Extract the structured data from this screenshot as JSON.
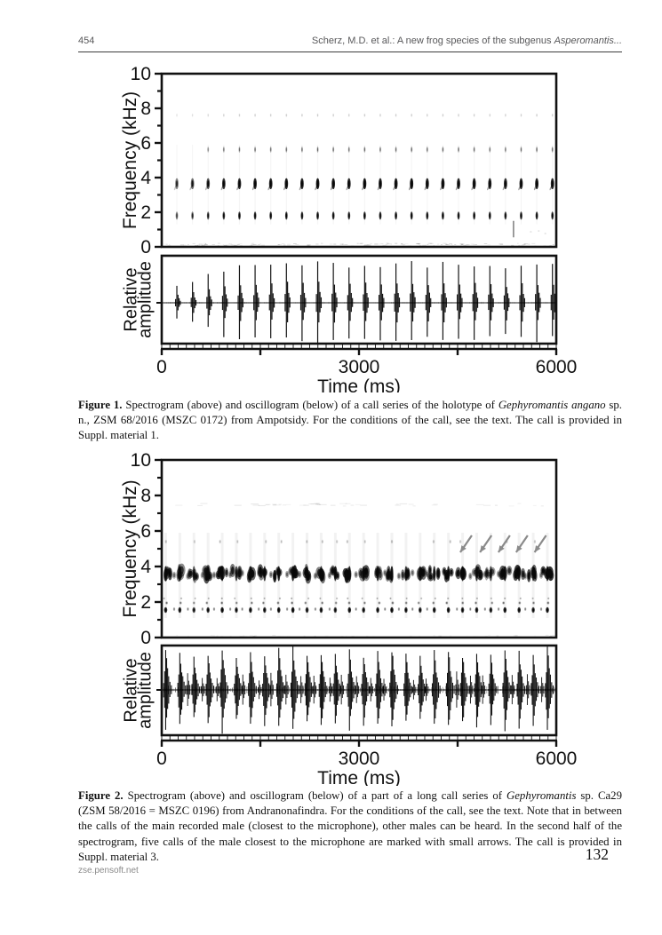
{
  "header": {
    "page_number": "454",
    "running_title_segments": [
      {
        "text": "Scherz, M.D. et al.: A new frog species of the subgenus "
      },
      {
        "text": "Asperomantis...",
        "italic": true
      }
    ]
  },
  "figures": [
    {
      "caption_segments": [
        {
          "text": "Figure 1.",
          "bold": true
        },
        {
          "text": " Spectrogram (above) and oscillogram (below) of a call series of the holotype of "
        },
        {
          "text": "Gephyromantis angano",
          "italic": true
        },
        {
          "text": " sp. n., ZSM 68/2016 (MSZC 0172) from Ampotsidy. For the conditions of the call, see the text. The call is provided in Suppl. material 1."
        }
      ]
    },
    {
      "caption_segments": [
        {
          "text": "Figure 2.",
          "bold": true
        },
        {
          "text": " Spectrogram (above) and oscillogram (below) of a part of a long call series of "
        },
        {
          "text": "Gephyromantis",
          "italic": true
        },
        {
          "text": " sp. Ca29 (ZSM 58/2016 = MSZC 0196) from Andranonafindra. For the conditions of the call, see the text. Note that in between the calls of the main recorded male (closest to the microphone), other males can be heard. In the second half of the spectrogram, five calls of the male closest to the microphone are marked with small arrows. The call is provided in Suppl. material 3."
        }
      ]
    }
  ],
  "footer": {
    "journal_url": "zse.pensoft.net",
    "page_number": "132"
  },
  "chart_data": [
    {
      "type": "heatmap",
      "subtype": "spectrogram_and_oscillogram",
      "id": "figure-1",
      "ink_color": "#111111",
      "time_axis": {
        "label": "Time (ms)",
        "min": 0,
        "max": 6000,
        "major_ticks": [
          0,
          1500,
          3000,
          4500,
          6000
        ],
        "labeled_ticks": [
          {
            "value": 0,
            "label": "0"
          },
          {
            "value": 3000,
            "label": "3000"
          },
          {
            "value": 6000,
            "label": "6000"
          }
        ]
      },
      "spectrogram": {
        "ylabel": "Frequency (kHz)",
        "ylim": [
          0,
          10
        ],
        "major_yticks": [
          0,
          2,
          4,
          6,
          8,
          10
        ],
        "minor_yticks": [
          1,
          3,
          5,
          7,
          9
        ],
        "energy_bands_khz": [
          3.7,
          1.8,
          5.6,
          7.6
        ],
        "band_relative_intensity": [
          1.0,
          0.8,
          0.3,
          0.1
        ],
        "artifact": {
          "time_ms": 5350,
          "freq_range_khz": [
            0.55,
            1.5
          ]
        }
      },
      "oscillogram": {
        "ylabel": "Relative amplitude"
      },
      "calls": {
        "count": 25,
        "first_ms": 230,
        "interval_ms": 238,
        "relative_amplitudes": [
          0.4,
          0.52,
          0.66,
          0.82,
          0.88,
          0.92,
          0.9,
          0.96,
          0.92,
          1.0,
          0.94,
          0.9,
          0.98,
          0.92,
          0.96,
          1.0,
          0.92,
          0.96,
          0.9,
          0.94,
          0.88,
          0.84,
          0.9,
          0.94,
          0.9
        ]
      }
    },
    {
      "type": "heatmap",
      "subtype": "spectrogram_and_oscillogram",
      "id": "figure-2",
      "ink_color": "#111111",
      "time_axis": {
        "label": "Time (ms)",
        "min": 0,
        "max": 6000,
        "major_ticks": [
          0,
          1500,
          3000,
          4500,
          6000
        ],
        "labeled_ticks": [
          {
            "value": 0,
            "label": "0"
          },
          {
            "value": 3000,
            "label": "3000"
          },
          {
            "value": 6000,
            "label": "6000"
          }
        ]
      },
      "spectrogram": {
        "ylabel": "Frequency (kHz)",
        "ylim": [
          0,
          10
        ],
        "major_yticks": [
          0,
          2,
          4,
          6,
          8,
          10
        ],
        "minor_yticks": [
          1,
          3,
          5,
          7,
          9
        ],
        "energy_bands_khz": [
          3.6,
          1.6,
          5.4,
          7.5
        ],
        "band_relative_intensity": [
          1.0,
          0.85,
          0.15,
          0.08
        ]
      },
      "oscillogram": {
        "ylabel": "Relative amplitude"
      },
      "calls": {
        "count": 28,
        "first_ms": 60,
        "interval_ms": 215,
        "relative_amplitudes": [
          0.95,
          0.9,
          0.75,
          0.85,
          1.0,
          0.8,
          0.9,
          0.85,
          0.95,
          1.0,
          0.85,
          0.9,
          0.8,
          0.95,
          0.85,
          0.9,
          1.0,
          0.85,
          0.8,
          0.9,
          0.95,
          0.85,
          0.9,
          0.8,
          0.95,
          0.9,
          0.85,
          1.0
        ]
      },
      "background_calls": true,
      "arrows": {
        "color": "#8a8a8a",
        "times_ms": [
          4540,
          4840,
          5120,
          5390,
          5670
        ],
        "points_from_khz": 5.75,
        "points_to_khz": 4.8
      }
    }
  ]
}
